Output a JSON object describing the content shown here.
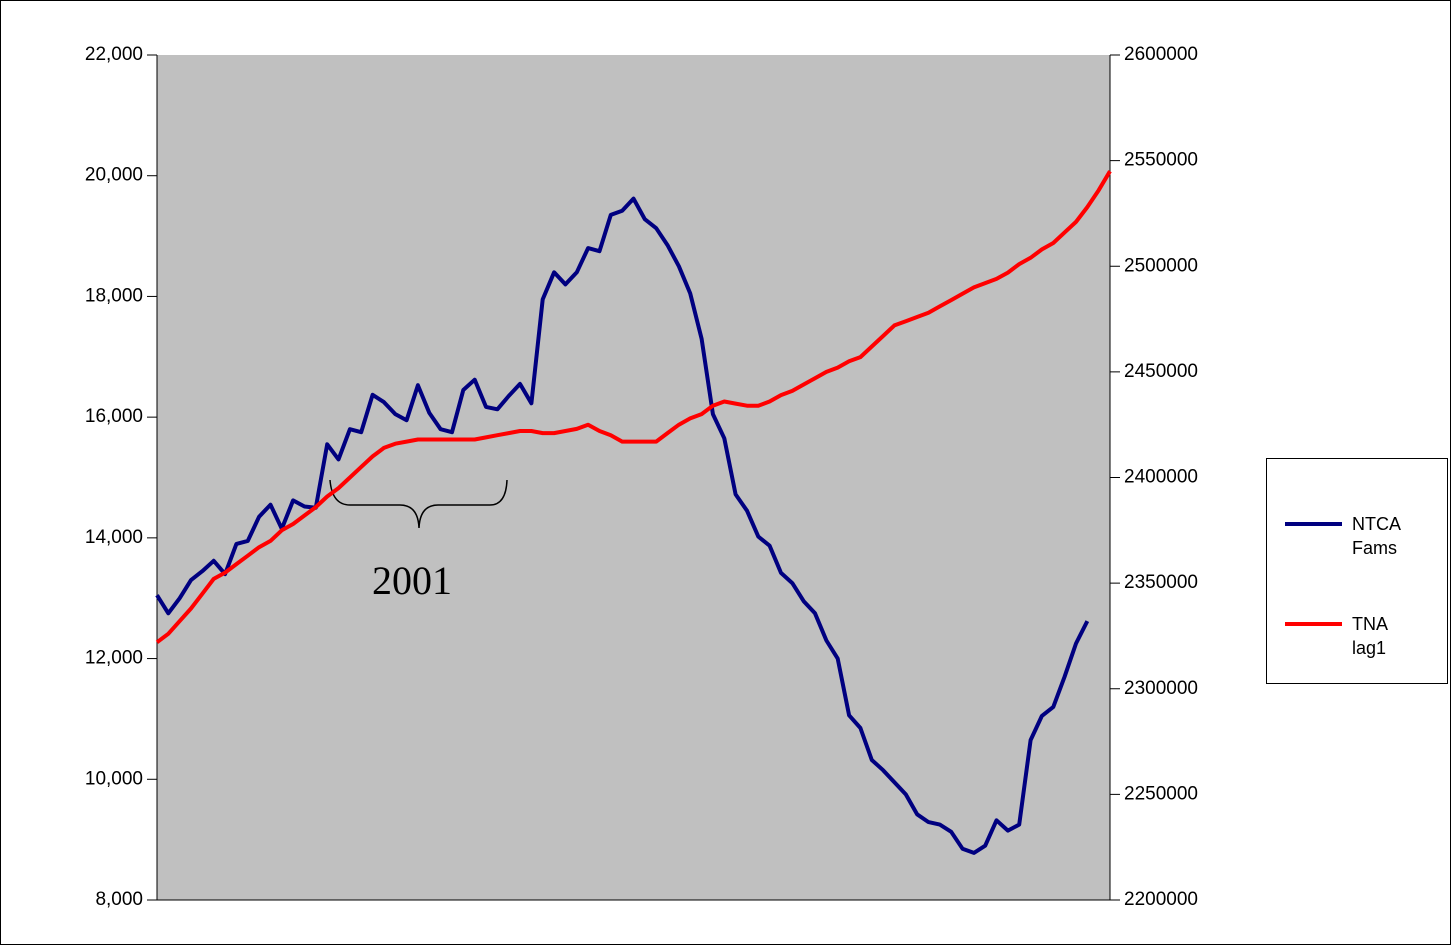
{
  "chart_data": {
    "type": "line",
    "categories": [
      null,
      null,
      null,
      null,
      null,
      null,
      null,
      null,
      null,
      null,
      null,
      null,
      null,
      null,
      null,
      null,
      null,
      null,
      null,
      null,
      null,
      null,
      null,
      null,
      null,
      null,
      null,
      null,
      null,
      null,
      null,
      null,
      null,
      null,
      null,
      null,
      null,
      null,
      null,
      null,
      null,
      null,
      null,
      null,
      null,
      null,
      null,
      null,
      null,
      null,
      null,
      null,
      null,
      null,
      null,
      null,
      null,
      null,
      null,
      null,
      null,
      null,
      null,
      null,
      null,
      null,
      null,
      null,
      null,
      null,
      null,
      null,
      null,
      null,
      null,
      null,
      null,
      null,
      null,
      null,
      null,
      null,
      null,
      null,
      null
    ],
    "series": [
      {
        "name": "NTCA Fams",
        "color": "#000080",
        "axis": "y",
        "values": [
          13050,
          12750,
          13000,
          13300,
          13450,
          13620,
          13400,
          13900,
          13950,
          14350,
          14550,
          14150,
          14620,
          14520,
          14500,
          15550,
          15300,
          15800,
          15750,
          16370,
          16250,
          16050,
          15950,
          16530,
          16070,
          15800,
          15750,
          16450,
          16620,
          16170,
          16130,
          16350,
          16550,
          16230,
          17950,
          18400,
          18200,
          18400,
          18800,
          18750,
          19350,
          19420,
          19620,
          19280,
          19130,
          18850,
          18500,
          18050,
          17300,
          16050,
          15650,
          14720,
          14450,
          14020,
          13870,
          13420,
          13250,
          12950,
          12750,
          12300,
          12000,
          11060,
          10850,
          10320,
          10150,
          9950,
          9750,
          9420,
          9290,
          9250,
          9130,
          8850,
          8780,
          8900,
          9320,
          9150,
          9250,
          10650,
          11050,
          11200,
          11700,
          12250,
          12620,
          null,
          null
        ]
      },
      {
        "name": "TNA lag1",
        "color": "#ff0000",
        "axis": "y2",
        "values": [
          2322000,
          2326000,
          2332000,
          2338000,
          2345000,
          2352000,
          2355000,
          2359000,
          2363000,
          2367000,
          2370000,
          2375000,
          2378000,
          2382000,
          2386000,
          2391000,
          2395000,
          2400000,
          2405000,
          2410000,
          2414000,
          2416000,
          2417000,
          2418000,
          2418000,
          2418000,
          2418000,
          2418000,
          2418000,
          2419000,
          2420000,
          2421000,
          2422000,
          2422000,
          2421000,
          2421000,
          2422000,
          2423000,
          2425000,
          2422000,
          2420000,
          2417000,
          2417000,
          2417000,
          2417000,
          2421000,
          2425000,
          2428000,
          2430000,
          2434000,
          2436000,
          2435000,
          2434000,
          2434000,
          2436000,
          2439000,
          2441000,
          2444000,
          2447000,
          2450000,
          2452000,
          2455000,
          2457000,
          2462000,
          2467000,
          2472000,
          2474000,
          2476000,
          2478000,
          2481000,
          2484000,
          2487000,
          2490000,
          2492000,
          2494000,
          2497000,
          2501000,
          2504000,
          2508000,
          2511000,
          2516000,
          2521000,
          2528000,
          2536000,
          2545000
        ]
      }
    ],
    "ylim": [
      8000,
      22000
    ],
    "yticks": [
      {
        "value": 8000,
        "label": "8,000"
      },
      {
        "value": 10000,
        "label": "10,000"
      },
      {
        "value": 12000,
        "label": "12,000"
      },
      {
        "value": 14000,
        "label": "14,000"
      },
      {
        "value": 16000,
        "label": "16,000"
      },
      {
        "value": 18000,
        "label": "18,000"
      },
      {
        "value": 20000,
        "label": "20,000"
      },
      {
        "value": 22000,
        "label": "22,000"
      }
    ],
    "y2lim": [
      2200000,
      2600000
    ],
    "y2ticks": [
      2200000,
      2250000,
      2300000,
      2350000,
      2400000,
      2450000,
      2500000,
      2550000,
      2600000
    ],
    "annotation": "2001",
    "legend": "right"
  }
}
